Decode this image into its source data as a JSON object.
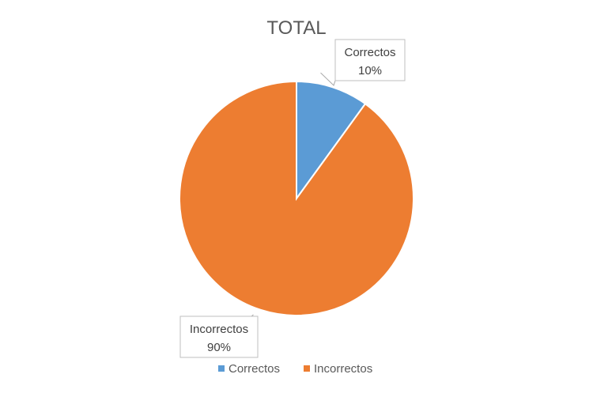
{
  "chart_data": {
    "type": "pie",
    "title": "TOTAL",
    "slices": [
      {
        "label": "Correctos",
        "value": 10,
        "value_label": "10%",
        "color": "#5B9BD5"
      },
      {
        "label": "Incorrectos",
        "value": 90,
        "value_label": "90%",
        "color": "#ED7D31"
      }
    ],
    "legend": {
      "placement": "bottom"
    }
  }
}
